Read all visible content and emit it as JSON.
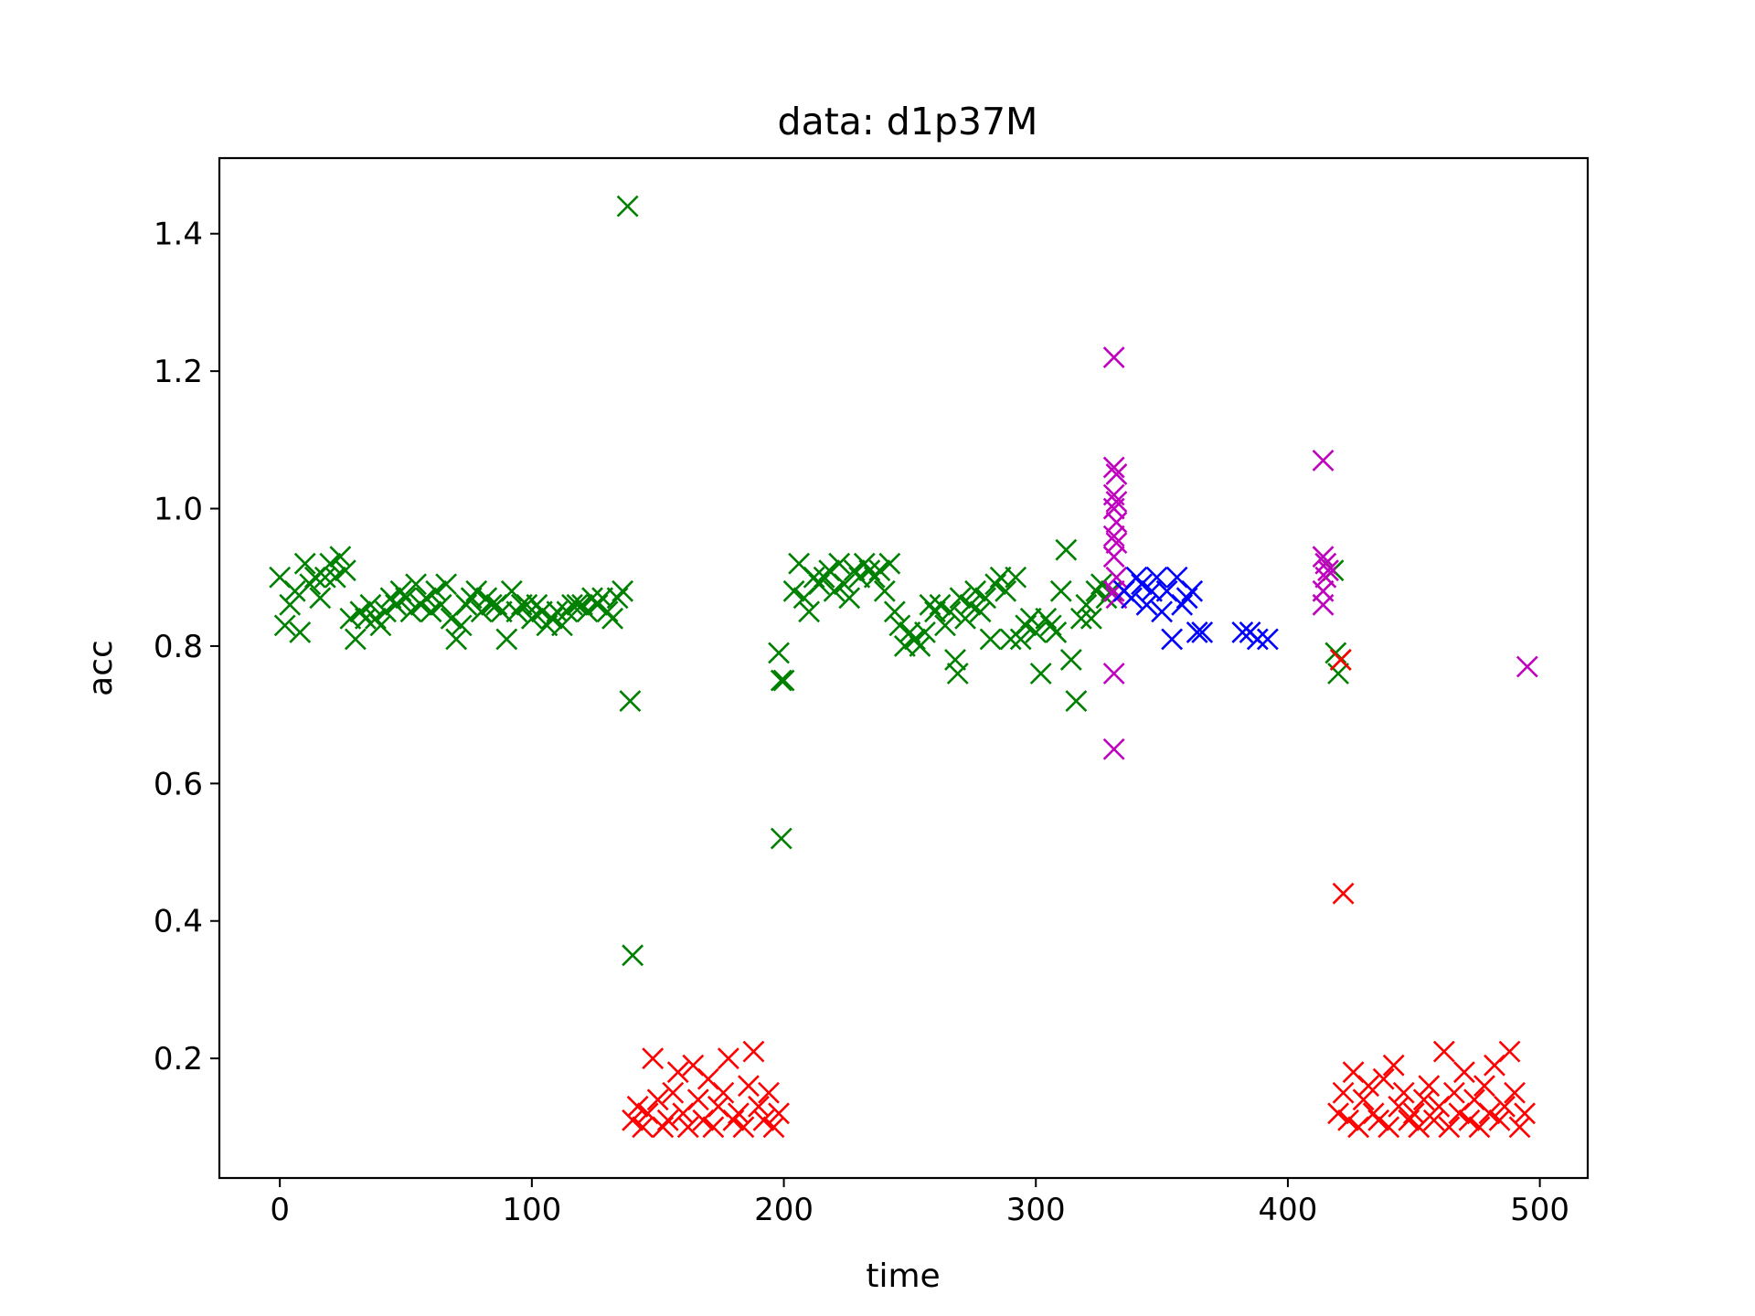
{
  "chart_data": {
    "type": "scatter",
    "title": "data: d1p37M",
    "xlabel": "time",
    "ylabel": "acc",
    "xlim": [
      -24,
      519
    ],
    "ylim": [
      0.026,
      1.51
    ],
    "xticks": [
      0,
      100,
      200,
      300,
      400,
      500
    ],
    "yticks": [
      0.2,
      0.4,
      0.6,
      0.8,
      1.0,
      1.2,
      1.4
    ],
    "xtick_labels": [
      "0",
      "100",
      "200",
      "300",
      "400",
      "500"
    ],
    "ytick_labels": [
      "0.2",
      "0.4",
      "0.6",
      "0.8",
      "1.0",
      "1.2",
      "1.4"
    ],
    "marker": "x",
    "grid": false,
    "series": [
      {
        "color": "#008000",
        "points": [
          [
            0,
            0.9
          ],
          [
            2,
            0.83
          ],
          [
            4,
            0.86
          ],
          [
            6,
            0.88
          ],
          [
            8,
            0.82
          ],
          [
            10,
            0.92
          ],
          [
            12,
            0.89
          ],
          [
            14,
            0.9
          ],
          [
            16,
            0.87
          ],
          [
            18,
            0.9
          ],
          [
            20,
            0.92
          ],
          [
            22,
            0.9
          ],
          [
            24,
            0.93
          ],
          [
            26,
            0.91
          ],
          [
            28,
            0.84
          ],
          [
            30,
            0.81
          ],
          [
            32,
            0.85
          ],
          [
            34,
            0.84
          ],
          [
            36,
            0.86
          ],
          [
            38,
            0.84
          ],
          [
            40,
            0.83
          ],
          [
            42,
            0.85
          ],
          [
            44,
            0.87
          ],
          [
            46,
            0.86
          ],
          [
            48,
            0.88
          ],
          [
            50,
            0.87
          ],
          [
            52,
            0.85
          ],
          [
            54,
            0.89
          ],
          [
            56,
            0.86
          ],
          [
            58,
            0.87
          ],
          [
            60,
            0.85
          ],
          [
            62,
            0.88
          ],
          [
            64,
            0.86
          ],
          [
            66,
            0.89
          ],
          [
            68,
            0.84
          ],
          [
            70,
            0.81
          ],
          [
            72,
            0.83
          ],
          [
            74,
            0.86
          ],
          [
            76,
            0.87
          ],
          [
            78,
            0.88
          ],
          [
            80,
            0.85
          ],
          [
            82,
            0.87
          ],
          [
            84,
            0.86
          ],
          [
            86,
            0.86
          ],
          [
            88,
            0.85
          ],
          [
            90,
            0.81
          ],
          [
            92,
            0.88
          ],
          [
            94,
            0.85
          ],
          [
            96,
            0.86
          ],
          [
            98,
            0.86
          ],
          [
            100,
            0.84
          ],
          [
            102,
            0.86
          ],
          [
            104,
            0.85
          ],
          [
            106,
            0.83
          ],
          [
            108,
            0.84
          ],
          [
            110,
            0.85
          ],
          [
            112,
            0.83
          ],
          [
            114,
            0.85
          ],
          [
            116,
            0.86
          ],
          [
            118,
            0.86
          ],
          [
            120,
            0.86
          ],
          [
            122,
            0.85
          ],
          [
            124,
            0.87
          ],
          [
            126,
            0.86
          ],
          [
            128,
            0.87
          ],
          [
            130,
            0.85
          ],
          [
            132,
            0.84
          ],
          [
            134,
            0.87
          ],
          [
            136,
            0.88
          ],
          [
            138,
            1.44
          ],
          [
            139,
            0.72
          ],
          [
            140,
            0.35
          ],
          [
            198,
            0.79
          ],
          [
            199,
            0.75
          ],
          [
            200,
            0.75
          ],
          [
            199,
            0.52
          ],
          [
            204,
            0.88
          ],
          [
            206,
            0.92
          ],
          [
            208,
            0.87
          ],
          [
            210,
            0.85
          ],
          [
            212,
            0.9
          ],
          [
            214,
            0.89
          ],
          [
            216,
            0.9
          ],
          [
            218,
            0.91
          ],
          [
            220,
            0.88
          ],
          [
            222,
            0.92
          ],
          [
            224,
            0.89
          ],
          [
            226,
            0.87
          ],
          [
            228,
            0.91
          ],
          [
            230,
            0.9
          ],
          [
            232,
            0.92
          ],
          [
            234,
            0.91
          ],
          [
            236,
            0.9
          ],
          [
            238,
            0.91
          ],
          [
            240,
            0.88
          ],
          [
            242,
            0.92
          ],
          [
            244,
            0.85
          ],
          [
            246,
            0.83
          ],
          [
            248,
            0.8
          ],
          [
            250,
            0.82
          ],
          [
            252,
            0.81
          ],
          [
            254,
            0.8
          ],
          [
            256,
            0.82
          ],
          [
            258,
            0.86
          ],
          [
            260,
            0.85
          ],
          [
            262,
            0.86
          ],
          [
            264,
            0.83
          ],
          [
            266,
            0.85
          ],
          [
            268,
            0.78
          ],
          [
            269,
            0.76
          ],
          [
            270,
            0.87
          ],
          [
            272,
            0.84
          ],
          [
            274,
            0.86
          ],
          [
            276,
            0.88
          ],
          [
            278,
            0.85
          ],
          [
            280,
            0.87
          ],
          [
            282,
            0.81
          ],
          [
            284,
            0.89
          ],
          [
            286,
            0.9
          ],
          [
            288,
            0.88
          ],
          [
            290,
            0.81
          ],
          [
            292,
            0.9
          ],
          [
            294,
            0.81
          ],
          [
            296,
            0.83
          ],
          [
            298,
            0.84
          ],
          [
            300,
            0.82
          ],
          [
            302,
            0.76
          ],
          [
            304,
            0.84
          ],
          [
            306,
            0.83
          ],
          [
            308,
            0.82
          ],
          [
            310,
            0.88
          ],
          [
            312,
            0.94
          ],
          [
            314,
            0.78
          ],
          [
            316,
            0.72
          ],
          [
            318,
            0.84
          ],
          [
            320,
            0.86
          ],
          [
            322,
            0.84
          ],
          [
            324,
            0.88
          ],
          [
            326,
            0.89
          ],
          [
            328,
            0.87
          ],
          [
            330,
            0.88
          ],
          [
            418,
            0.91
          ],
          [
            419,
            0.79
          ],
          [
            420,
            0.76
          ],
          [
            421,
            0.78
          ]
        ]
      },
      {
        "color": "#ff0000",
        "points": [
          [
            140,
            0.11
          ],
          [
            142,
            0.13
          ],
          [
            144,
            0.1
          ],
          [
            146,
            0.12
          ],
          [
            148,
            0.2
          ],
          [
            150,
            0.14
          ],
          [
            152,
            0.1
          ],
          [
            154,
            0.11
          ],
          [
            156,
            0.15
          ],
          [
            158,
            0.18
          ],
          [
            160,
            0.12
          ],
          [
            162,
            0.1
          ],
          [
            164,
            0.19
          ],
          [
            166,
            0.14
          ],
          [
            168,
            0.11
          ],
          [
            170,
            0.17
          ],
          [
            172,
            0.1
          ],
          [
            174,
            0.13
          ],
          [
            176,
            0.15
          ],
          [
            178,
            0.2
          ],
          [
            180,
            0.11
          ],
          [
            182,
            0.12
          ],
          [
            184,
            0.1
          ],
          [
            186,
            0.16
          ],
          [
            188,
            0.21
          ],
          [
            190,
            0.13
          ],
          [
            192,
            0.11
          ],
          [
            194,
            0.15
          ],
          [
            196,
            0.1
          ],
          [
            198,
            0.12
          ],
          [
            421,
            0.78
          ],
          [
            422,
            0.44
          ],
          [
            420,
            0.12
          ],
          [
            422,
            0.15
          ],
          [
            424,
            0.11
          ],
          [
            426,
            0.18
          ],
          [
            428,
            0.1
          ],
          [
            430,
            0.14
          ],
          [
            432,
            0.16
          ],
          [
            434,
            0.12
          ],
          [
            436,
            0.11
          ],
          [
            438,
            0.17
          ],
          [
            440,
            0.1
          ],
          [
            442,
            0.19
          ],
          [
            444,
            0.13
          ],
          [
            446,
            0.15
          ],
          [
            448,
            0.11
          ],
          [
            450,
            0.12
          ],
          [
            452,
            0.1
          ],
          [
            454,
            0.14
          ],
          [
            456,
            0.16
          ],
          [
            458,
            0.11
          ],
          [
            460,
            0.13
          ],
          [
            462,
            0.21
          ],
          [
            464,
            0.1
          ],
          [
            466,
            0.15
          ],
          [
            468,
            0.12
          ],
          [
            470,
            0.18
          ],
          [
            472,
            0.11
          ],
          [
            474,
            0.14
          ],
          [
            476,
            0.1
          ],
          [
            478,
            0.16
          ],
          [
            480,
            0.12
          ],
          [
            482,
            0.19
          ],
          [
            484,
            0.11
          ],
          [
            486,
            0.13
          ],
          [
            488,
            0.21
          ],
          [
            490,
            0.15
          ],
          [
            492,
            0.1
          ],
          [
            494,
            0.12
          ]
        ]
      },
      {
        "color": "#bf00bf",
        "points": [
          [
            331,
            1.22
          ],
          [
            331,
            1.06
          ],
          [
            332,
            1.05
          ],
          [
            331,
            1.02
          ],
          [
            332,
            1.01
          ],
          [
            331,
            1.0
          ],
          [
            332,
            0.98
          ],
          [
            331,
            0.96
          ],
          [
            332,
            0.95
          ],
          [
            331,
            0.93
          ],
          [
            332,
            0.9
          ],
          [
            331,
            0.88
          ],
          [
            332,
            0.87
          ],
          [
            331,
            0.76
          ],
          [
            331,
            0.65
          ],
          [
            414,
            1.07
          ],
          [
            414,
            0.93
          ],
          [
            415,
            0.92
          ],
          [
            415,
            0.9
          ],
          [
            416,
            0.91
          ],
          [
            414,
            0.88
          ],
          [
            414,
            0.86
          ],
          [
            495,
            0.77
          ]
        ]
      },
      {
        "color": "#0000ff",
        "points": [
          [
            335,
            0.88
          ],
          [
            338,
            0.87
          ],
          [
            340,
            0.9
          ],
          [
            342,
            0.89
          ],
          [
            344,
            0.86
          ],
          [
            346,
            0.88
          ],
          [
            348,
            0.9
          ],
          [
            350,
            0.85
          ],
          [
            352,
            0.88
          ],
          [
            354,
            0.81
          ],
          [
            356,
            0.9
          ],
          [
            358,
            0.86
          ],
          [
            360,
            0.87
          ],
          [
            362,
            0.88
          ],
          [
            364,
            0.82
          ],
          [
            366,
            0.82
          ],
          [
            382,
            0.82
          ],
          [
            385,
            0.82
          ],
          [
            388,
            0.81
          ],
          [
            392,
            0.81
          ]
        ]
      }
    ]
  }
}
